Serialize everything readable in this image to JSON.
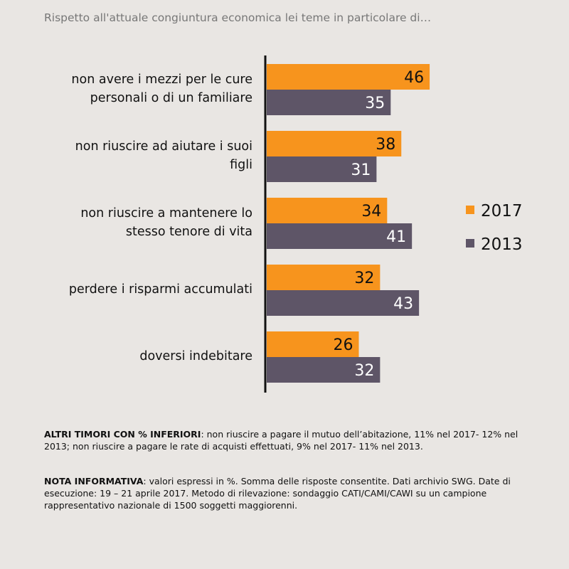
{
  "chart_data": {
    "type": "barh",
    "title": "Rispetto all'attuale congiuntura economica lei teme in particolare di…",
    "categories": [
      "non avere i mezzi per le cure\npersonali o di un familiare",
      "non riuscire ad aiutare i suoi\nfigli",
      "non riuscire a mantenere lo\nstesso tenore di vita",
      "perdere i risparmi accumulati",
      "doversi indebitare"
    ],
    "series": [
      {
        "name": "2017",
        "color": "#f7941d",
        "values": [
          46,
          38,
          34,
          32,
          26
        ]
      },
      {
        "name": "2013",
        "color": "#5e5567",
        "values": [
          35,
          31,
          41,
          43,
          32
        ]
      }
    ],
    "legend": "right"
  },
  "notes": [
    {
      "label": "ALTRI TIMORI CON % INFERIORI",
      "text": ": non riuscire a pagare il mutuo dell’abitazione, 11% nel 2017- 12% nel 2013; non riuscire a pagare le rate di acquisti effettuati, 9% nel 2017- 11% nel 2013."
    },
    {
      "label": "NOTA INFORMATIVA",
      "text": ": valori espressi in %. Somma delle risposte consentite. Dati archivio SWG. Date di esecuzione: 19 – 21 aprile  2017. Metodo di rilevazione: sondaggio CATI/CAMI/CAWI su un campione rappresentativo nazionale di 1500 soggetti maggiorenni."
    }
  ]
}
